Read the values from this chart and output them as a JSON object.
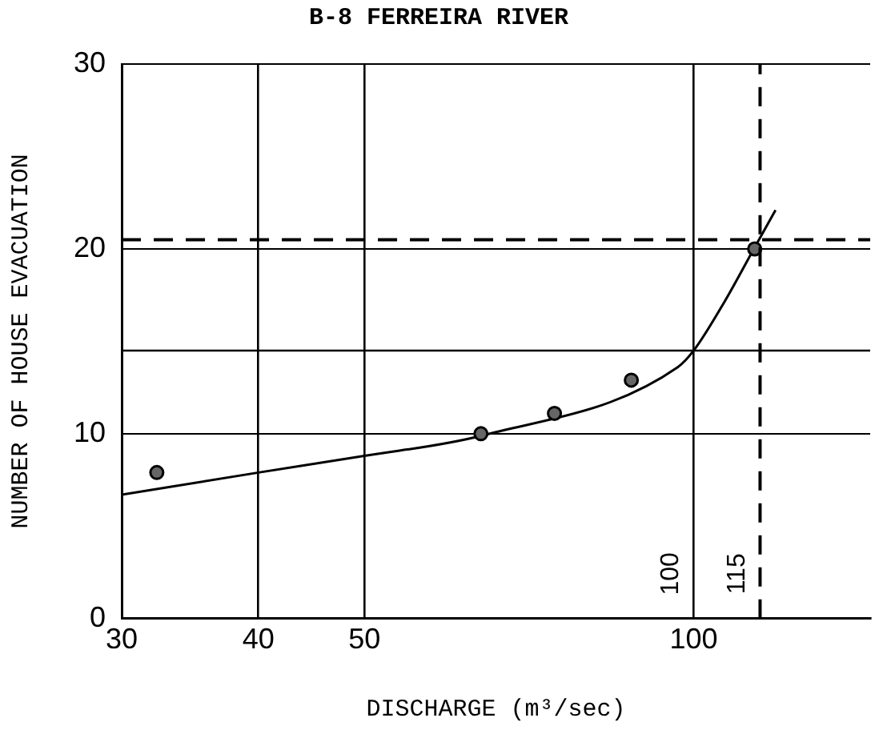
{
  "chart_data": {
    "type": "scatter",
    "title": "B-8 FERREIRA RIVER",
    "xlabel": "DISCHARGE (m³/sec)",
    "ylabel": "NUMBER OF HOUSE EVACUATION",
    "log": "x",
    "xlim": [
      30,
      145
    ],
    "xticks": [
      30,
      40,
      50,
      100
    ],
    "ylim": [
      0,
      30
    ],
    "yticks": [
      0,
      10,
      20,
      30
    ],
    "grid": true,
    "legend": false,
    "marker": "circle",
    "series": [
      {
        "type": "scatter",
        "color": "#000000",
        "x": [
          32.3,
          63.9,
          74.6,
          87.7,
          113.7
        ],
        "values": [
          7.9,
          10,
          11.1,
          12.9,
          20
        ]
      },
      {
        "type": "line",
        "color": "#000000",
        "marker": "none",
        "x": [
          30,
          40,
          50,
          64,
          96.7,
          100,
          106.6,
          113.5,
          118.8
        ],
        "values": [
          6.7,
          7.9,
          8.8,
          9.9,
          13.6,
          14.5,
          17.1,
          20,
          22.1
        ]
      }
    ],
    "ref_lines": [
      {
        "axis": "x",
        "value": 115,
        "label": "115",
        "line_style": "dashed"
      },
      {
        "axis": "y",
        "value": 14.5
      },
      {
        "axis": "y",
        "value": 20.5,
        "line_style": "dashed"
      }
    ],
    "annotations": [
      "100"
    ]
  }
}
